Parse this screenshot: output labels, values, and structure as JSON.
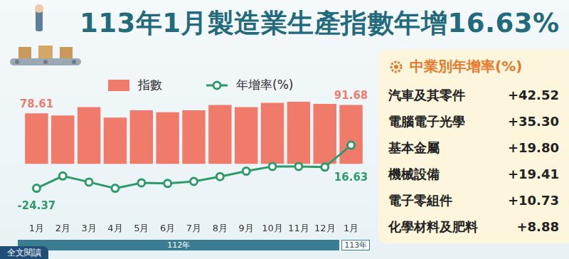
{
  "chart_data": {
    "type": "bar",
    "title": "113年1月製造業生產指數年增16.63%",
    "categories": [
      "1月",
      "2月",
      "3月",
      "4月",
      "5月",
      "6月",
      "7月",
      "8月",
      "9月",
      "10月",
      "11月",
      "12月",
      "1月"
    ],
    "category_groups": [
      "112年",
      "112年",
      "112年",
      "112年",
      "112年",
      "112年",
      "112年",
      "112年",
      "112年",
      "112年",
      "112年",
      "112年",
      "113年"
    ],
    "series": [
      {
        "name": "指數",
        "type": "bar",
        "color": "#f07b6b",
        "values": [
          78.61,
          75.3,
          88.4,
          72.1,
          83.5,
          80.3,
          83.5,
          91.7,
          88.4,
          94.9,
          96.6,
          93.3,
          91.68
        ],
        "value_labels": [
          "78.61",
          null,
          null,
          null,
          null,
          null,
          null,
          null,
          null,
          null,
          null,
          null,
          "91.68"
        ]
      },
      {
        "name": "年增率(%)",
        "type": "line",
        "axis": "y2",
        "color": "#2e9a6a",
        "marker": "circle",
        "line_style": "solid",
        "values": [
          -24.37,
          -12.7,
          -18.5,
          -24.4,
          -19.2,
          -19.8,
          -17.9,
          -13.3,
          -8.1,
          -3.6,
          -3.6,
          -4.2,
          16.63
        ],
        "value_labels": [
          "-24.37",
          null,
          null,
          null,
          null,
          null,
          null,
          null,
          null,
          null,
          null,
          null,
          "16.63"
        ]
      }
    ],
    "ylim": [
      -80,
      100
    ],
    "y2lim": [
      -50,
      60
    ],
    "tick_labels": "x",
    "grid": false,
    "legend": "top"
  },
  "panel": {
    "title": "中業別年增率(%)",
    "rows": [
      {
        "name": "汽車及其零件",
        "value": 42.52,
        "label": "+42.52"
      },
      {
        "name": "電腦電子光學",
        "value": 35.3,
        "label": "+35.30"
      },
      {
        "name": "基本金屬",
        "value": 19.8,
        "label": "+19.80"
      },
      {
        "name": "機械設備",
        "value": 19.41,
        "label": "+19.41"
      },
      {
        "name": "電子零組件",
        "value": 10.73,
        "label": "+10.73"
      },
      {
        "name": "化學材料及肥料",
        "value": 8.88,
        "label": "+8.88"
      }
    ]
  },
  "button": "全文閱讀"
}
